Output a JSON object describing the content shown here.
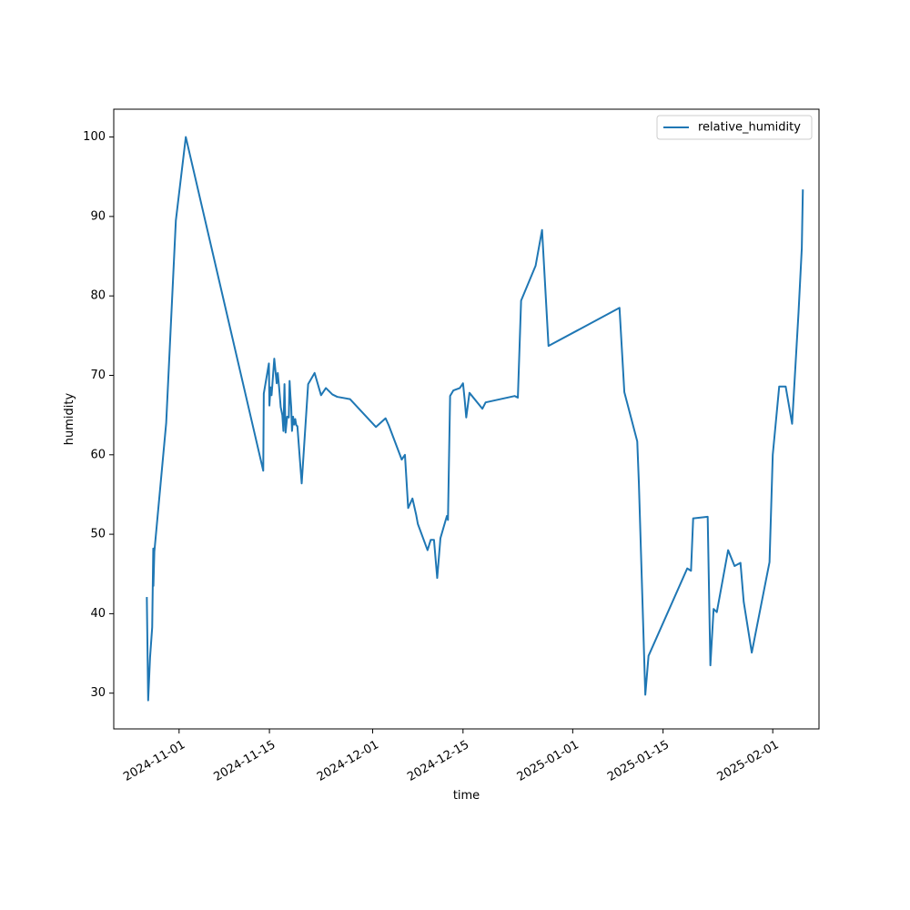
{
  "chart_data": {
    "type": "line",
    "title": "",
    "xlabel": "time",
    "ylabel": "humidity",
    "xlim": [
      "2024-10-21T21:00",
      "2025-02-08T04:00"
    ],
    "ylim": [
      25.5,
      103.5
    ],
    "grid": false,
    "legend": {
      "position": "upper right"
    },
    "x_ticks": [
      "2024-11-01",
      "2024-11-15",
      "2024-12-01",
      "2024-12-15",
      "2025-01-01",
      "2025-01-15",
      "2025-02-01"
    ],
    "y_ticks": [
      30,
      40,
      50,
      60,
      70,
      80,
      90,
      100
    ],
    "series": [
      {
        "name": "relative_humidity",
        "color": "#1f77b4",
        "x": [
          "2024-10-27T00:00",
          "2024-10-27T05:00",
          "2024-10-27T12:00",
          "2024-10-27T20:00",
          "2024-10-28T00:00",
          "2024-10-28T00:30",
          "2024-10-28T04:00",
          "2024-10-30T00:00",
          "2024-10-31T12:00",
          "2024-11-02T01:00",
          "2024-11-14T01:00",
          "2024-11-14T03:00",
          "2024-11-14T22:00",
          "2024-11-15T00:00",
          "2024-11-15T04:00",
          "2024-11-15T08:00",
          "2024-11-15T18:00",
          "2024-11-16T03:00",
          "2024-11-16T07:00",
          "2024-11-16T12:00",
          "2024-11-16T18:00",
          "2024-11-17T00:00",
          "2024-11-17T04:00",
          "2024-11-17T08:00",
          "2024-11-17T12:00",
          "2024-11-17T18:00",
          "2024-11-18T00:00",
          "2024-11-18T03:00",
          "2024-11-18T06:00",
          "2024-11-18T09:00",
          "2024-11-18T12:00",
          "2024-11-18T16:00",
          "2024-11-18T20:00",
          "2024-11-19T00:00",
          "2024-11-19T04:00",
          "2024-11-19T08:00",
          "2024-11-20T00:00",
          "2024-11-21T00:00",
          "2024-11-22T00:00",
          "2024-11-23T00:00",
          "2024-11-23T18:00",
          "2024-11-24T18:00",
          "2024-11-25T12:00",
          "2024-11-27T12:00",
          "2024-12-01T12:00",
          "2024-12-03T00:00",
          "2024-12-03T12:00",
          "2024-12-05T12:00",
          "2024-12-06T00:00",
          "2024-12-06T12:00",
          "2024-12-07T04:00",
          "2024-12-07T18:00",
          "2024-12-08T00:00",
          "2024-12-09T12:00",
          "2024-12-10T00:00",
          "2024-12-10T12:00",
          "2024-12-11T00:00",
          "2024-12-11T12:00",
          "2024-12-12T12:00",
          "2024-12-12T16:00",
          "2024-12-13T00:00",
          "2024-12-13T12:00",
          "2024-12-14T12:00",
          "2024-12-15T00:00",
          "2024-12-15T06:00",
          "2024-12-15T12:00",
          "2024-12-16T00:00",
          "2024-12-18T00:00",
          "2024-12-18T12:00",
          "2024-12-23T00:00",
          "2024-12-23T12:00",
          "2024-12-24T00:00",
          "2024-12-26T06:00",
          "2024-12-27T06:00",
          "2024-12-28T06:00",
          "2025-01-08T06:00",
          "2025-01-09T00:00",
          "2025-01-11T00:00",
          "2025-01-11T06:00",
          "2025-01-12T06:00",
          "2025-01-12T18:00",
          "2025-01-18T18:00",
          "2025-01-19T08:00",
          "2025-01-19T16:00",
          "2025-01-21T22:00",
          "2025-01-22T08:00",
          "2025-01-22T20:00",
          "2025-01-23T08:00",
          "2025-01-25T02:00",
          "2025-01-26T02:00",
          "2025-01-27T00:00",
          "2025-01-27T12:00",
          "2025-01-28T18:00",
          "2025-01-31T12:00",
          "2025-02-01T00:00",
          "2025-02-02T00:00",
          "2025-02-03T00:00",
          "2025-02-04T00:00",
          "2025-02-05T00:00",
          "2025-02-05T12:00",
          "2025-02-05T16:00"
        ],
        "y": [
          42.1,
          29.1,
          34.5,
          38.3,
          48.2,
          43.5,
          47.8,
          64.0,
          89.5,
          100.0,
          58.0,
          67.7,
          71.5,
          66.2,
          68.5,
          67.5,
          72.1,
          69.0,
          70.3,
          68.5,
          66.0,
          65.0,
          63.0,
          68.9,
          62.8,
          64.8,
          64.7,
          69.3,
          67.5,
          66.0,
          63.0,
          64.8,
          63.8,
          64.5,
          63.7,
          63.6,
          56.4,
          68.9,
          70.3,
          67.5,
          68.4,
          67.6,
          67.3,
          67.0,
          63.5,
          64.6,
          63.7,
          59.4,
          60.0,
          53.3,
          54.5,
          52.4,
          51.3,
          48.0,
          49.3,
          49.3,
          44.5,
          49.5,
          52.3,
          51.8,
          67.4,
          68.1,
          68.4,
          69.0,
          67.0,
          64.7,
          67.8,
          65.8,
          66.6,
          67.4,
          67.2,
          79.4,
          83.8,
          88.3,
          73.7,
          78.5,
          67.9,
          61.7,
          56.5,
          29.8,
          34.7,
          45.7,
          45.4,
          52.0,
          52.2,
          33.5,
          40.6,
          40.2,
          48.0,
          46.0,
          46.4,
          41.5,
          35.1,
          46.5,
          60.0,
          68.6,
          68.6,
          63.9,
          78.0,
          86.0,
          93.4
        ]
      }
    ]
  }
}
